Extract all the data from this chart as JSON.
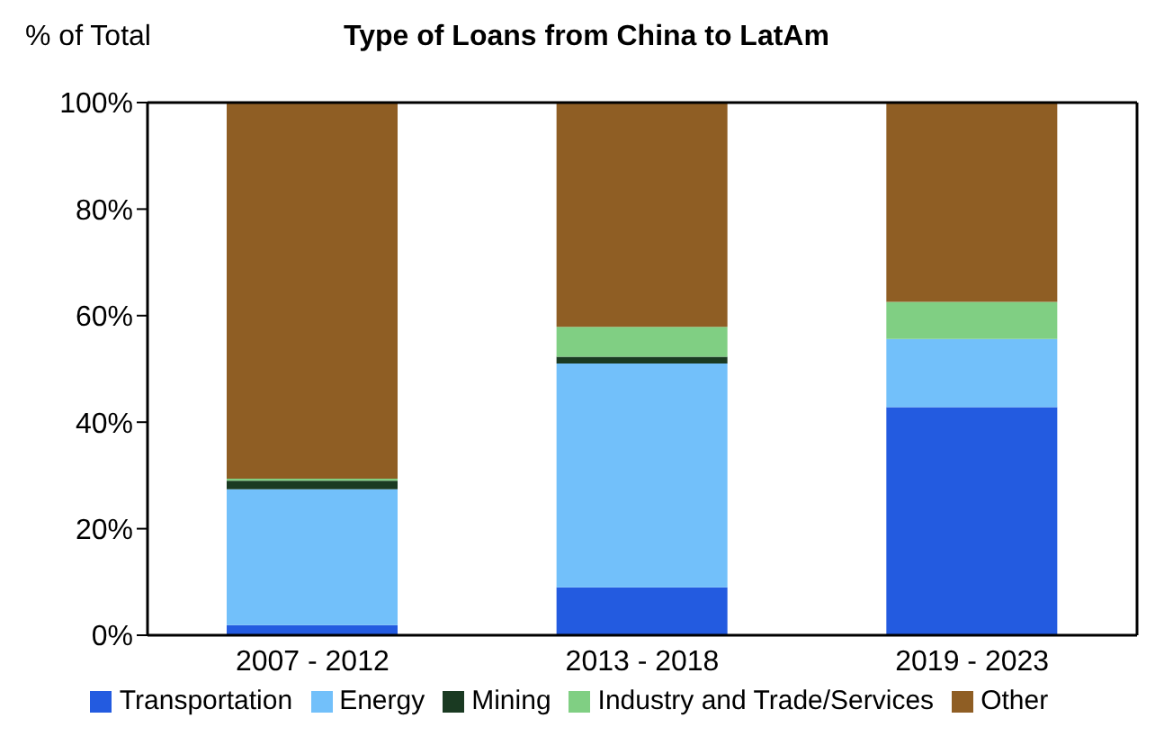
{
  "chart_data": {
    "type": "bar",
    "title": "Type of Loans from China to LatAm",
    "ylabel": "% of Total",
    "categories": [
      "2007 - 2012",
      "2013 - 2018",
      "2019 - 2023"
    ],
    "stacked": true,
    "legend": "bottom",
    "ylim": [
      0,
      100
    ],
    "yticks": [
      {
        "value": 0,
        "label": "0%"
      },
      {
        "value": 20,
        "label": "20%"
      },
      {
        "value": 40,
        "label": "40%"
      },
      {
        "value": 60,
        "label": "60%"
      },
      {
        "value": 80,
        "label": "80%"
      },
      {
        "value": 100,
        "label": "100%"
      }
    ],
    "series": [
      {
        "name": "Transportation",
        "color": "#235be0",
        "values": [
          1.9,
          9.0,
          42.8
        ]
      },
      {
        "name": "Energy",
        "color": "#72c0fa",
        "values": [
          25.5,
          42.0,
          12.8
        ]
      },
      {
        "name": "Mining",
        "color": "#1a3a22",
        "values": [
          1.6,
          1.3,
          0
        ]
      },
      {
        "name": "Industry and Trade/Services",
        "color": "#80cf83",
        "values": [
          0.4,
          5.6,
          7.0
        ]
      },
      {
        "name": "Other",
        "color": "#8f5e24",
        "values": [
          70.6,
          42.1,
          37.4
        ]
      }
    ]
  }
}
